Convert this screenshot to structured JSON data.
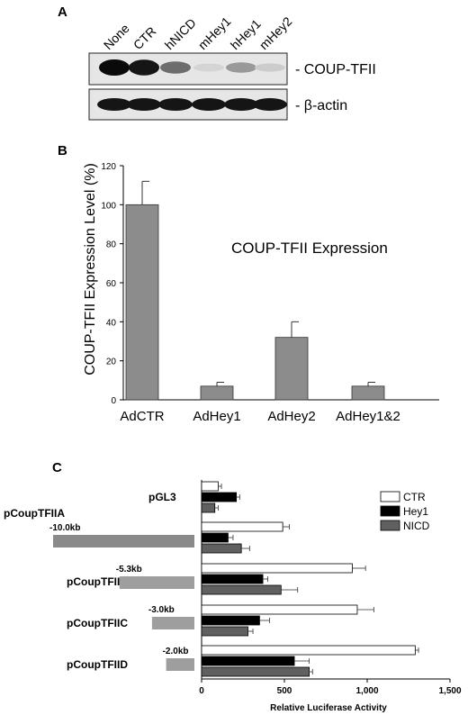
{
  "panel_a": {
    "letter": "A",
    "lanes": [
      "None",
      "CTR",
      "hNICD",
      "mHey1",
      "hHey1",
      "mHey2"
    ],
    "band_labels": [
      "- COUP-TFII",
      "- β-actin"
    ],
    "coup_intensity": [
      1.0,
      0.95,
      0.55,
      0.08,
      0.35,
      0.12
    ],
    "actin_intensity": [
      0.95,
      0.95,
      0.95,
      0.95,
      0.95,
      0.95
    ]
  },
  "panel_b": {
    "letter": "B"
  },
  "panel_c": {
    "letter": "C"
  },
  "chart_data": [
    {
      "type": "bar",
      "title": "COUP-TFII Expression",
      "xlabel": "",
      "ylabel": "COUP-TFII Expression Level (%)",
      "categories": [
        "AdCTR",
        "AdHey1",
        "AdHey2",
        "AdHey1&2"
      ],
      "values": [
        100,
        7,
        32,
        7
      ],
      "errors": [
        12,
        2,
        8,
        2
      ],
      "ylim": [
        0,
        120
      ],
      "yticks": [
        0,
        20,
        40,
        60,
        80,
        100,
        120
      ],
      "bar_color": "#8c8c8c",
      "grid": false
    },
    {
      "type": "bar",
      "orientation": "horizontal",
      "xlabel": "Relative Luciferase Activity",
      "xlim": [
        0,
        1500
      ],
      "xticks": [
        0,
        500,
        1000,
        1500
      ],
      "xtick_labels": [
        "0",
        "500",
        "1,000",
        "1,500"
      ],
      "categories": [
        "pGL3",
        "pCoupTFIIA",
        "pCoupTFIIB",
        "pCoupTFIIC",
        "pCoupTFIID"
      ],
      "construct_sizes": [
        "",
        "-10.0kb",
        "-5.3kb",
        "-3.0kb",
        "-2.0kb"
      ],
      "construct_lengths_kb": [
        0,
        10.0,
        5.3,
        3.0,
        2.0
      ],
      "series": [
        {
          "name": "CTR",
          "values": [
            100,
            490,
            910,
            940,
            1290
          ],
          "errors": [
            20,
            40,
            80,
            100,
            20
          ],
          "color": "#ffffff"
        },
        {
          "name": "Hey1",
          "values": [
            210,
            160,
            370,
            350,
            560
          ],
          "errors": [
            20,
            30,
            30,
            60,
            90
          ],
          "color": "#000000"
        },
        {
          "name": "NICD",
          "values": [
            80,
            240,
            480,
            280,
            650
          ],
          "errors": [
            20,
            50,
            100,
            30,
            20
          ],
          "color": "#606060"
        }
      ],
      "legend_position": "top-right"
    }
  ]
}
